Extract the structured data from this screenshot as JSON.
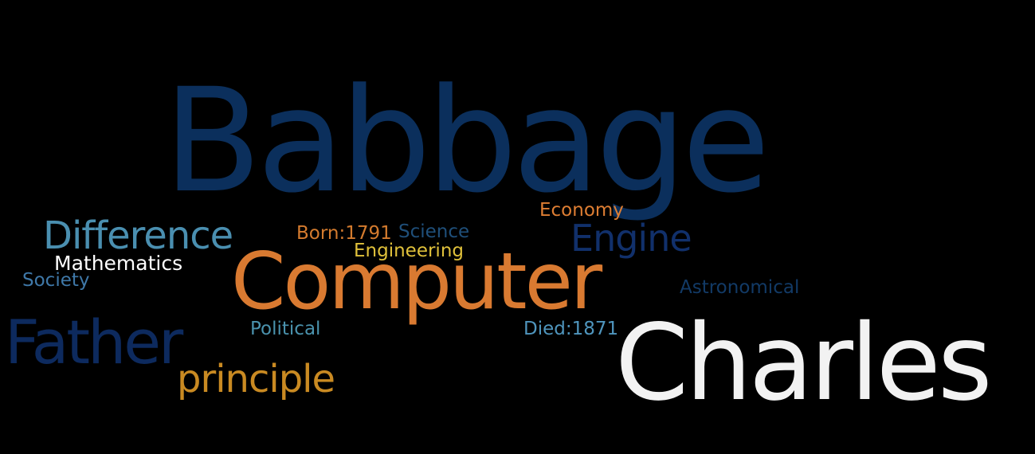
{
  "word_cloud": {
    "words": [
      {
        "id": "babbage",
        "text": "Babbage",
        "color": "#0b2f5c"
      },
      {
        "id": "computer",
        "text": "Computer",
        "color": "#d97a31"
      },
      {
        "id": "charles",
        "text": "Charles",
        "color": "#f2f2f2"
      },
      {
        "id": "father",
        "text": "Father",
        "color": "#0d2a5e"
      },
      {
        "id": "difference",
        "text": "Difference",
        "color": "#4a8fb0"
      },
      {
        "id": "engine",
        "text": "Engine",
        "color": "#11306b"
      },
      {
        "id": "principle",
        "text": "principle",
        "color": "#c98a22"
      },
      {
        "id": "mathematics",
        "text": "Mathematics",
        "color": "#ffffff"
      },
      {
        "id": "society",
        "text": "Society",
        "color": "#3f78a8"
      },
      {
        "id": "born",
        "text": "Born:1791",
        "color": "#d47b2e"
      },
      {
        "id": "science",
        "text": "Science",
        "color": "#1f4f7a"
      },
      {
        "id": "engineering",
        "text": "Engineering",
        "color": "#e0c13b"
      },
      {
        "id": "economy",
        "text": "Economy",
        "color": "#de7e33"
      },
      {
        "id": "astronomical",
        "text": "Astronomical",
        "color": "#123a66"
      },
      {
        "id": "political",
        "text": "Political",
        "color": "#4a92ad"
      },
      {
        "id": "died",
        "text": "Died:1871",
        "color": "#4f95bd"
      }
    ]
  }
}
